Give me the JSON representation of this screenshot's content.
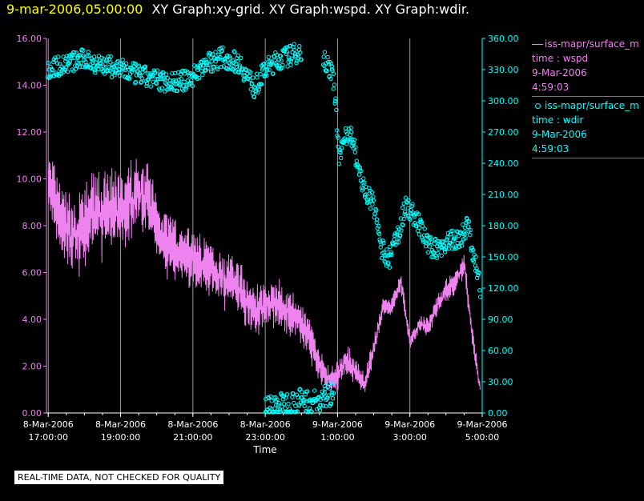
{
  "header": {
    "timestamp": "9-mar-2006,05:00:00",
    "graphs": "XY Graph:xy-grid.  XY Graph:wspd.  XY Graph:wdir."
  },
  "legend": [
    {
      "label": "iss-mapr/surface_m",
      "var": "time : wspd",
      "date": "9-Mar-2006",
      "time": "4:59:03",
      "color": "#ee82ee",
      "marker": "line"
    },
    {
      "label": "iss-mapr/surface_m",
      "var": "time : wdir",
      "date": "9-Mar-2006",
      "time": "4:59:03",
      "color": "#00ffff",
      "marker": "circle"
    }
  ],
  "footer": "REAL-TIME DATA, NOT CHECKED FOR QUALITY",
  "chart_data": {
    "type": "line",
    "xlabel": "Time",
    "x_ticks": [
      [
        "8-Mar-2006",
        "17:00:00"
      ],
      [
        "8-Mar-2006",
        "19:00:00"
      ],
      [
        "8-Mar-2006",
        "21:00:00"
      ],
      [
        "8-Mar-2006",
        "23:00:00"
      ],
      [
        "9-Mar-2006",
        "1:00:00"
      ],
      [
        "9-Mar-2006",
        "3:00:00"
      ],
      [
        "9-Mar-2006",
        "5:00:00"
      ]
    ],
    "x_tick_hours": [
      17,
      19,
      21,
      23,
      25,
      27,
      29
    ],
    "xlim_hours": [
      16.95,
      29.0
    ],
    "left_axis": {
      "ylim": [
        0,
        16
      ],
      "ticks": [
        "0.00",
        "2.00",
        "4.00",
        "6.00",
        "8.00",
        "10.00",
        "12.00",
        "14.00",
        "16.00"
      ],
      "color": "#ee82ee"
    },
    "right_axis": {
      "ylim": [
        0,
        360
      ],
      "ticks": [
        "0.00",
        "30.00",
        "60.00",
        "90.00",
        "120.00",
        "150.00",
        "180.00",
        "210.00",
        "240.00",
        "270.00",
        "300.00",
        "330.00",
        "360.00"
      ],
      "color": "#00ffff"
    },
    "grid": "vertical",
    "series": [
      {
        "var": "wspd",
        "axis": "left",
        "style": "line",
        "color": "#ee82ee",
        "x_hours": [
          17.0,
          17.25,
          17.5,
          17.75,
          18.0,
          18.25,
          18.5,
          18.75,
          19.0,
          19.25,
          19.5,
          19.75,
          20.0,
          20.25,
          20.5,
          20.75,
          21.0,
          21.25,
          21.5,
          21.75,
          22.0,
          22.25,
          22.5,
          22.75,
          23.0,
          23.25,
          23.5,
          23.75,
          24.0,
          24.25,
          24.5,
          24.75,
          25.0,
          25.25,
          25.5,
          25.75,
          26.0,
          26.25,
          26.5,
          26.75,
          27.0,
          27.25,
          27.5,
          27.75,
          28.0,
          28.25,
          28.5,
          28.75,
          28.95
        ],
        "values": [
          9.8,
          8.6,
          7.8,
          7.4,
          8.0,
          8.6,
          8.4,
          8.8,
          8.6,
          9.0,
          9.4,
          9.2,
          8.0,
          7.4,
          7.0,
          6.8,
          6.6,
          6.4,
          6.2,
          5.8,
          5.6,
          5.4,
          4.8,
          4.4,
          4.6,
          4.8,
          4.4,
          4.2,
          3.8,
          3.0,
          2.0,
          1.4,
          1.6,
          2.2,
          1.8,
          1.2,
          2.8,
          4.4,
          4.6,
          5.6,
          3.0,
          3.8,
          3.6,
          4.6,
          5.2,
          5.6,
          6.4,
          3.0,
          1.0
        ],
        "noise": [
          2.6,
          2.8,
          3.0,
          3.0,
          3.2,
          3.2,
          3.2,
          3.0,
          2.8,
          3.0,
          2.8,
          2.8,
          2.6,
          2.6,
          2.4,
          2.4,
          2.4,
          2.4,
          2.2,
          2.2,
          2.2,
          2.2,
          2.0,
          2.0,
          2.0,
          2.0,
          1.8,
          1.8,
          1.8,
          1.6,
          1.4,
          1.2,
          1.2,
          1.2,
          1.2,
          1.0,
          1.0,
          0.8,
          0.8,
          0.8,
          0.6,
          0.6,
          0.8,
          0.8,
          1.0,
          1.0,
          1.0,
          0.8,
          0.6
        ]
      },
      {
        "var": "wdir",
        "axis": "right",
        "style": "circle",
        "color": "#00ffff",
        "segments": [
          {
            "x": [
              16.98,
              17.5,
              18.0,
              18.5,
              19.0,
              19.5,
              20.0,
              20.5,
              20.9,
              21.3,
              21.8,
              22.3,
              22.7,
              23.0,
              23.4,
              23.8,
              24.0
            ],
            "y": [
              330,
              336,
              340,
              335,
              330,
              325,
              320,
              318,
              320,
              335,
              342,
              336,
              312,
              330,
              340,
              345,
              348
            ],
            "jitter": 10
          },
          {
            "x": [
              23.0,
              23.5,
              24.0,
              24.5,
              24.9
            ],
            "y": [
              5,
              8,
              12,
              10,
              22
            ],
            "jitter": 12
          },
          {
            "x": [
              24.6,
              24.9,
              25.05,
              25.2,
              25.4,
              25.6,
              25.8,
              26.0,
              26.2,
              26.4,
              26.7,
              26.9,
              27.1,
              27.3,
              27.5,
              27.8,
              28.1,
              28.4,
              28.6,
              28.8,
              28.95
            ],
            "y": [
              345,
              320,
              240,
              270,
              265,
              230,
              210,
              200,
              160,
              145,
              175,
              200,
              190,
              178,
              160,
              158,
              165,
              168,
              182,
              145,
              118
            ],
            "jitter": 10
          }
        ]
      }
    ]
  }
}
